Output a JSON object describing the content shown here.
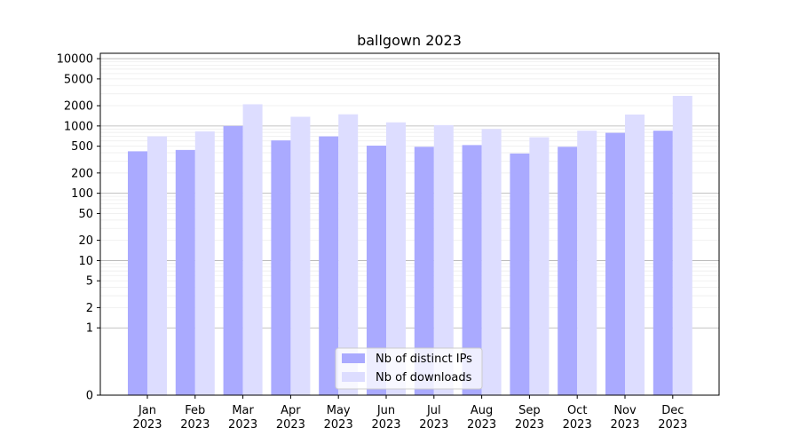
{
  "chart_data": {
    "type": "bar",
    "title": "ballgown 2023",
    "xlabel": "",
    "ylabel": "",
    "yscale": "symlog",
    "ylim": [
      0,
      10000
    ],
    "yticks": [
      "0",
      "1",
      "2",
      "5",
      "10",
      "20",
      "50",
      "100",
      "200",
      "500",
      "1000",
      "2000",
      "5000",
      "10000"
    ],
    "grid": "horizontal major and minor lines",
    "legend_position": "bottom-center",
    "categories": [
      [
        "Jan",
        "2023"
      ],
      [
        "Feb",
        "2023"
      ],
      [
        "Mar",
        "2023"
      ],
      [
        "Apr",
        "2023"
      ],
      [
        "May",
        "2023"
      ],
      [
        "Jun",
        "2023"
      ],
      [
        "Jul",
        "2023"
      ],
      [
        "Aug",
        "2023"
      ],
      [
        "Sep",
        "2023"
      ],
      [
        "Oct",
        "2023"
      ],
      [
        "Nov",
        "2023"
      ],
      [
        "Dec",
        "2023"
      ]
    ],
    "series": [
      {
        "name": "Nb of distinct IPs",
        "color": "#aaaaff",
        "values": [
          420,
          440,
          1000,
          610,
          700,
          510,
          490,
          520,
          390,
          490,
          790,
          850
        ]
      },
      {
        "name": "Nb of downloads",
        "color": "#ddddff",
        "values": [
          700,
          830,
          2100,
          1370,
          1490,
          1130,
          1030,
          900,
          680,
          850,
          1480,
          2800
        ]
      }
    ]
  }
}
